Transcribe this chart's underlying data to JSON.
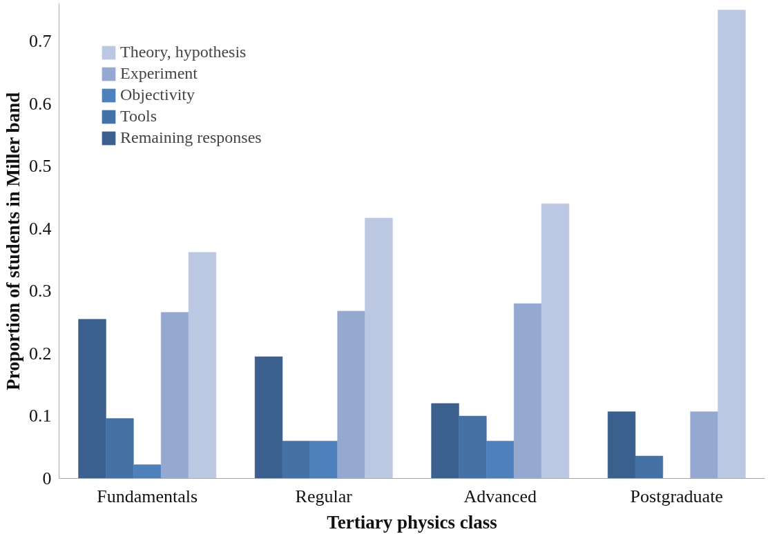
{
  "chart_data": {
    "type": "bar",
    "xlabel": "Tertiary physics class",
    "ylabel": "Proportion of students in Miller band",
    "categories": [
      "Fundamentals",
      "Regular",
      "Advanced",
      "Postgraduate"
    ],
    "series": [
      {
        "name": "Remaining responses",
        "color": "#3b608e",
        "values": [
          0.255,
          0.195,
          0.12,
          0.107
        ]
      },
      {
        "name": "Tools",
        "color": "#4472a6",
        "values": [
          0.096,
          0.06,
          0.1,
          0.036
        ]
      },
      {
        "name": "Objectivity",
        "color": "#4e80bc",
        "values": [
          0.022,
          0.06,
          0.06,
          0
        ]
      },
      {
        "name": "Experiment",
        "color": "#95a9d0",
        "values": [
          0.266,
          0.268,
          0.28,
          0.107
        ]
      },
      {
        "name": "Theory, hypothesis",
        "color": "#bcc8e2",
        "values": [
          0.362,
          0.417,
          0.44,
          0.75
        ]
      }
    ],
    "ylim": [
      0,
      0.76
    ],
    "yticks": [
      0,
      0.1,
      0.2,
      0.3,
      0.4,
      0.5,
      0.6,
      0.7
    ],
    "grid": false,
    "legend": "top left"
  }
}
